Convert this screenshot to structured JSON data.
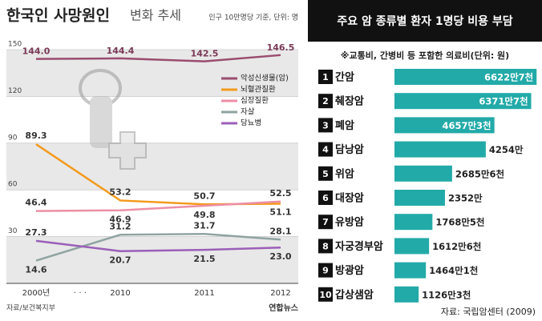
{
  "chart_data": [
    {
      "type": "line",
      "title": "한국인 사망원인",
      "subtitle": "변화 추세",
      "unit_note": "인구 10만명당 기준, 단위: 명",
      "categories": [
        "2000년",
        "2010",
        "2011",
        "2012"
      ],
      "gap_label": "· · ·",
      "series": [
        {
          "name": "악성신생물(암)",
          "color": "#9a4d6e",
          "values": [
            144.0,
            144.4,
            142.5,
            146.5
          ],
          "value_labels": [
            "144.0",
            "144.4",
            "142.5",
            "146.5"
          ]
        },
        {
          "name": "뇌혈관질환",
          "color": "#f39a1c",
          "values": [
            89.3,
            53.2,
            50.7,
            51.1
          ],
          "value_labels": [
            "89.3",
            "53.2",
            "50.7",
            "51.1"
          ]
        },
        {
          "name": "심장질환",
          "color": "#ec8fa6",
          "values": [
            46.4,
            46.9,
            49.8,
            52.5
          ],
          "value_labels": [
            "46.4",
            "46.9",
            "49.8",
            "52.5"
          ]
        },
        {
          "name": "자살",
          "color": "#8fa4a0",
          "values": [
            14.6,
            31.2,
            31.7,
            28.1
          ],
          "value_labels": [
            "14.6",
            "31.2",
            "31.7",
            "28.1"
          ]
        },
        {
          "name": "당뇨병",
          "color": "#9b5fb8",
          "values": [
            27.3,
            20.7,
            21.5,
            23.0
          ],
          "value_labels": [
            "27.3",
            "20.7",
            "21.5",
            "23.0"
          ]
        }
      ],
      "ylim": [
        0,
        150
      ],
      "yticks": [
        30,
        60,
        90,
        120,
        150
      ],
      "grid": true,
      "source": "자료/보건복지부",
      "credit": "연합뉴스"
    },
    {
      "type": "hbar",
      "title": "주요 암 종류별 환자 1명당 비용 부담",
      "subtitle": "※교통비, 간병비 등 포함한 의료비(단위: 원)",
      "ranks": [
        1,
        2,
        3,
        4,
        5,
        6,
        7,
        8,
        9,
        10
      ],
      "categories": [
        "간암",
        "췌장암",
        "폐암",
        "담낭암",
        "위암",
        "대장암",
        "유방암",
        "자궁경부암",
        "방광암",
        "갑상샘암"
      ],
      "values": [
        66227000,
        63717000,
        46573000,
        42540000,
        26856000,
        23520000,
        17685000,
        16126000,
        14641000,
        11263000
      ],
      "value_labels": [
        "6622만7천",
        "6371만7천",
        "4657만3천",
        "4254만",
        "2685만6천",
        "2352만",
        "1768만5천",
        "1612만6천",
        "1464만1천",
        "1126만3천"
      ],
      "color": "#22aaa8",
      "xlim": [
        0,
        68000000
      ],
      "source": "자료: 국립암센터 (2009)"
    }
  ]
}
